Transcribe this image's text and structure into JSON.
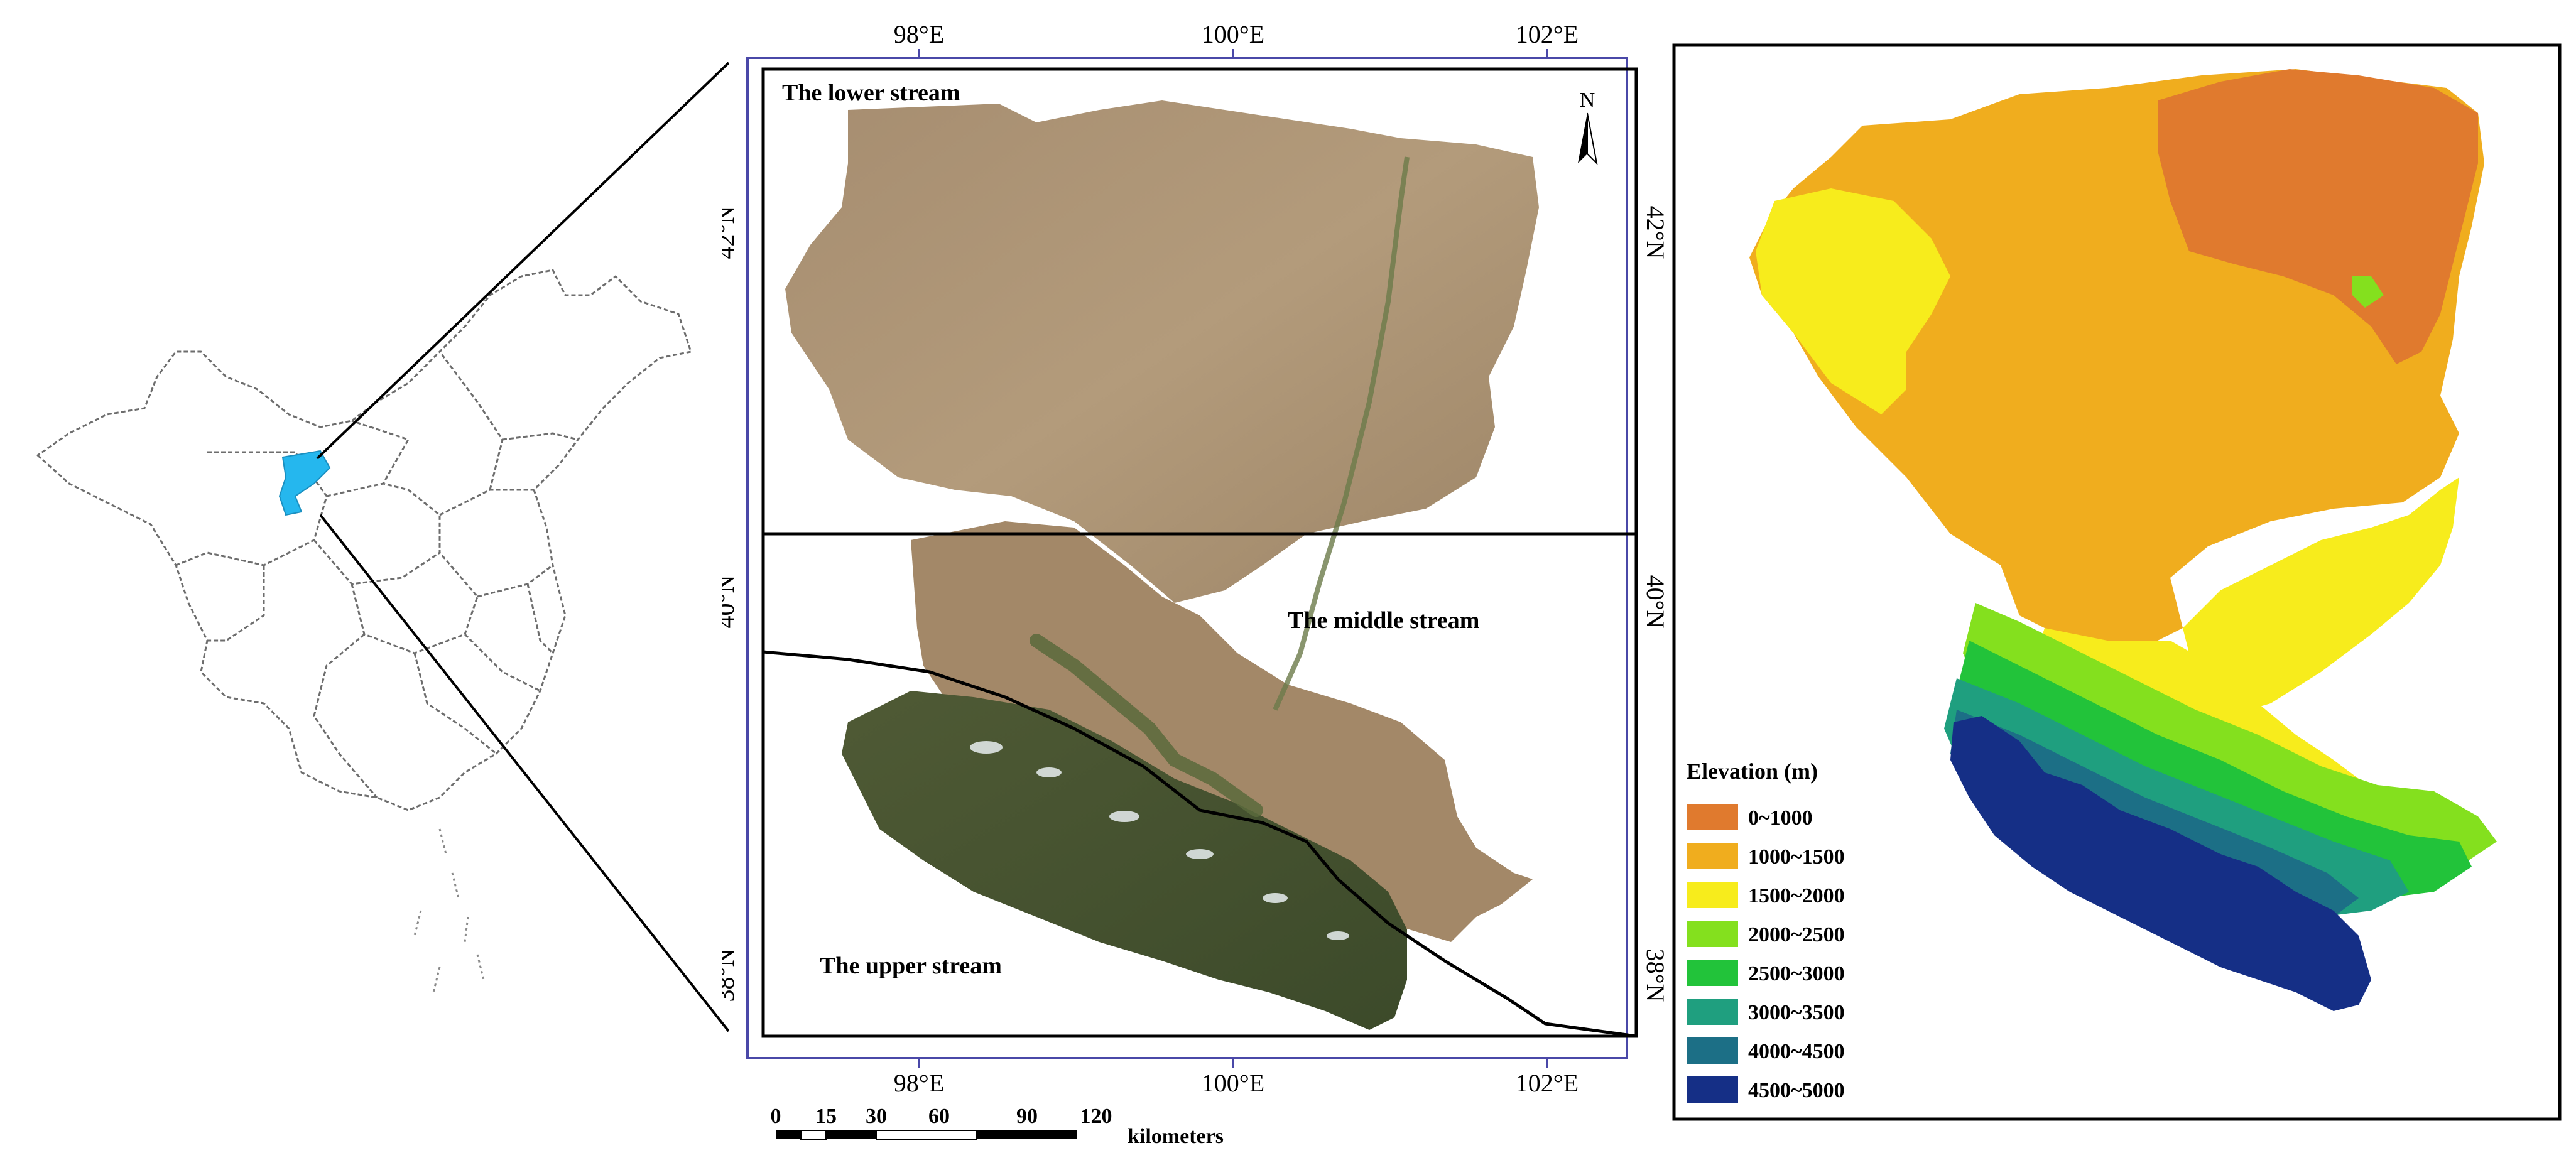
{
  "satellite_map": {
    "top_axis": {
      "lon_98": "98°E",
      "lon_100": "100°E",
      "lon_102": "102°E"
    },
    "bottom_axis": {
      "lon_98": "98°E",
      "lon_100": "100°E",
      "lon_102": "102°E"
    },
    "left_axis": {
      "lat_42": "42°N",
      "lat_40": "40°N",
      "lat_38": "38°N"
    },
    "right_axis": {
      "lat_42": "42°N",
      "lat_40": "40°N",
      "lat_38": "38°N"
    },
    "region_labels": {
      "lower": "The lower stream",
      "middle": "The middle stream",
      "upper": "The upper stream"
    },
    "north_arrow": "N",
    "scale_bar": {
      "ticks": [
        "0",
        "15",
        "30",
        "60",
        "90",
        "120"
      ],
      "unit": "kilometers"
    }
  },
  "elevation_map": {
    "legend_title": "Elevation (m)",
    "legend_items": [
      {
        "label": "0~1000",
        "color": "#e07a2e"
      },
      {
        "label": "1000~1500",
        "color": "#f0ad1e"
      },
      {
        "label": "1500~2000",
        "color": "#f7ec1c"
      },
      {
        "label": "2000~2500",
        "color": "#84e01e"
      },
      {
        "label": "2500~3000",
        "color": "#22c33a"
      },
      {
        "label": "3000~3500",
        "color": "#1f9f7f"
      },
      {
        "label": "4000~4500",
        "color": "#1c6f86"
      },
      {
        "label": "4500~5000",
        "color": "#152f86"
      }
    ]
  },
  "colors": {
    "highlight": "#25b7ee",
    "frame": "#4a48a8"
  }
}
